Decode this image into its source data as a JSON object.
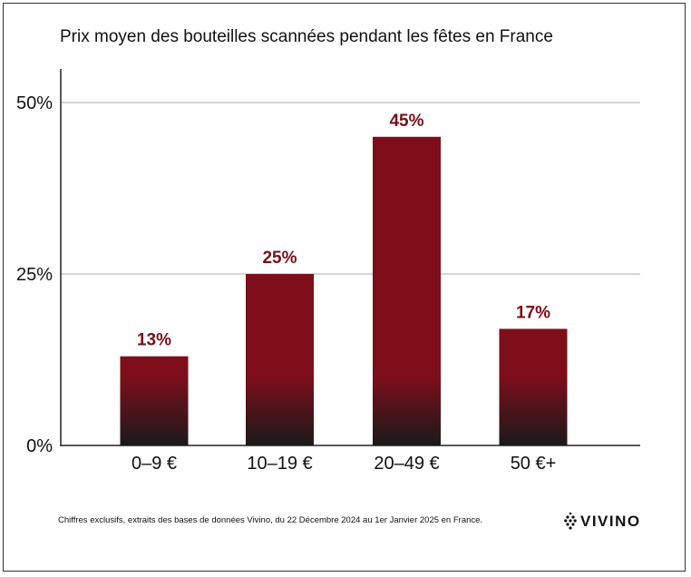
{
  "chart_data": {
    "type": "bar",
    "title": "Prix moyen des bouteilles scannées pendant les fêtes en France",
    "categories": [
      "0–9 €",
      "10–19 €",
      "20–49 €",
      "50 €+"
    ],
    "values": [
      13,
      25,
      45,
      17
    ],
    "value_labels": [
      "13%",
      "25%",
      "45%",
      "17%"
    ],
    "xlabel": "",
    "ylabel": "",
    "ylim": [
      0,
      50
    ],
    "yticks": [
      0,
      25,
      50
    ],
    "ytick_labels": [
      "0%",
      "25%",
      "50%"
    ],
    "grid": true,
    "bar_color": "#7d0e1a",
    "bar_base_color": "#1a1a1a",
    "label_color": "#7a0e18"
  },
  "footnote": "Chiffres exclusifs, extraits des bases de données Vivino, du 22 Décembre 2024 au 1er Janvier 2025 en France.",
  "logo": "VIVINO"
}
